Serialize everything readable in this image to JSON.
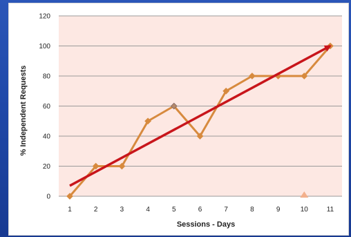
{
  "chart_data": {
    "type": "line",
    "title": "",
    "xlabel": "Sessions - Days",
    "ylabel": "% Independent Requests",
    "x": [
      1,
      2,
      3,
      4,
      5,
      6,
      7,
      8,
      9,
      10,
      11
    ],
    "xlim": [
      1,
      11
    ],
    "ylim": [
      0,
      120
    ],
    "yticks": [
      0,
      20,
      40,
      60,
      80,
      100,
      120
    ],
    "grid": true,
    "legend": "none",
    "plot_bg_color": "#fde8e3",
    "series": [
      {
        "values": [
          0,
          20,
          20,
          50,
          60,
          40,
          70,
          80,
          80,
          80,
          100
        ],
        "color": "#d78a3e",
        "marker": "diamond"
      }
    ],
    "trend_arrow": {
      "from": [
        1,
        7
      ],
      "to": [
        11,
        100
      ],
      "color": "#c8151b"
    },
    "annotations": [
      {
        "x": 10,
        "y": 0,
        "marker": "triangle",
        "color": "#f3b08c"
      }
    ]
  }
}
